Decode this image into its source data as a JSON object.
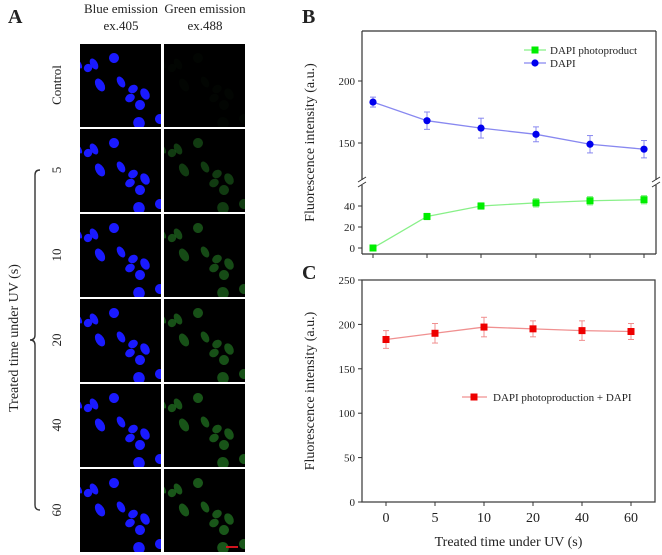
{
  "figure": {
    "panelA": {
      "letter": "A",
      "columns": [
        {
          "line1": "Blue emission",
          "line2": "ex.405",
          "channel": "blue",
          "color": "#1a1aff"
        },
        {
          "line1": "Green emission",
          "line2": "ex.488",
          "channel": "green",
          "color": "#1f6b1f"
        }
      ],
      "rows": [
        {
          "label": "Control",
          "green_intensity": 0.05
        },
        {
          "label": "5",
          "green_intensity": 0.55
        },
        {
          "label": "10",
          "green_intensity": 0.7
        },
        {
          "label": "20",
          "green_intensity": 0.75
        },
        {
          "label": "40",
          "green_intensity": 0.78
        },
        {
          "label": "60",
          "green_intensity": 0.8
        }
      ],
      "bracket_label": "Treated time under UV (s)",
      "scale_bar_color": "#d0141e"
    },
    "panelB": {
      "letter": "B"
    },
    "panelC": {
      "letter": "C"
    }
  },
  "chart_data": [
    {
      "id": "B",
      "type": "line",
      "title": "",
      "xlabel": "",
      "ylabel": "Fluorescence intensity (a.u.)",
      "categories": [
        "0",
        "5",
        "10",
        "20",
        "40",
        "60"
      ],
      "y_axis_break": true,
      "ylim_lower": [
        -5,
        55
      ],
      "ylim_upper": [
        110,
        230
      ],
      "yticks_lower": [
        0,
        20,
        40
      ],
      "yticks_upper": [
        150,
        200
      ],
      "legend_position": "top-right",
      "series": [
        {
          "name": "DAPI photoproduct",
          "color": "#00ee00",
          "line_color": "#88f088",
          "marker": "square",
          "values": [
            0,
            30,
            40,
            43,
            45,
            46
          ],
          "errors": [
            0,
            3,
            3,
            4,
            4,
            4
          ]
        },
        {
          "name": "DAPI",
          "color": "#0000ee",
          "line_color": "#8888f0",
          "marker": "circle",
          "values": [
            183,
            168,
            162,
            157,
            149,
            145
          ],
          "errors": [
            4,
            7,
            8,
            6,
            7,
            7
          ]
        }
      ]
    },
    {
      "id": "C",
      "type": "line",
      "title": "",
      "xlabel": "Treated time under UV (s)",
      "ylabel": "Fluorescence intensity (a.u.)",
      "categories": [
        "0",
        "5",
        "10",
        "20",
        "40",
        "60"
      ],
      "ylim": [
        0,
        250
      ],
      "yticks": [
        0,
        50,
        100,
        150,
        200,
        250
      ],
      "legend_position": "center-right",
      "series": [
        {
          "name": "DAPI photoproduction + DAPI",
          "color": "#ee0000",
          "line_color": "#f09090",
          "marker": "square",
          "values": [
            183,
            190,
            197,
            195,
            193,
            192
          ],
          "errors": [
            10,
            11,
            11,
            9,
            11,
            9
          ]
        }
      ]
    }
  ]
}
